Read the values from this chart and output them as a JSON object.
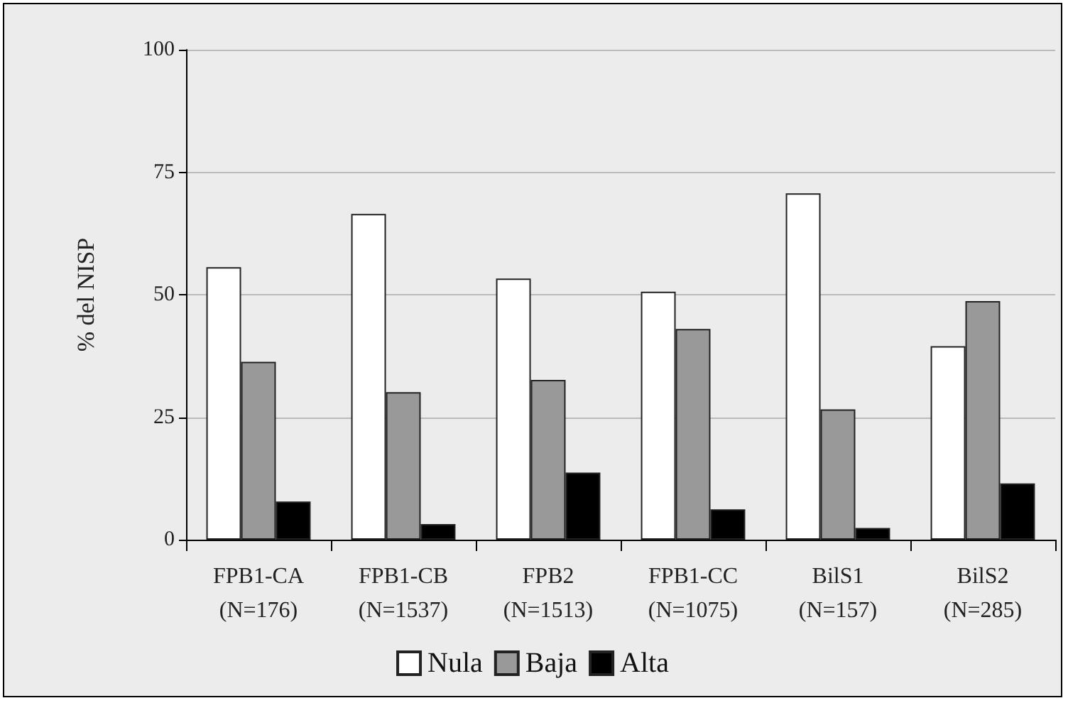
{
  "chart_data": {
    "type": "bar",
    "ylabel": "% del NISP",
    "categories": [
      "FPB1-CA\n(N=176)",
      "FPB1-CB\n(N=1537)",
      "FPB2\n(N=1513)",
      "FPB1-CC\n(N=1075)",
      "BilS1\n(N=157)",
      "BilS2\n(N=285)"
    ],
    "series": [
      {
        "name": "Nula",
        "color": "#ffffff",
        "values": [
          55.6,
          66.5,
          53.3,
          50.6,
          70.7,
          39.5
        ]
      },
      {
        "name": "Baja",
        "color": "#999999",
        "values": [
          36.3,
          30.1,
          32.6,
          43.0,
          26.6,
          48.7
        ]
      },
      {
        "name": "Alta",
        "color": "#000000",
        "values": [
          7.8,
          3.2,
          13.7,
          6.2,
          2.4,
          11.5
        ]
      }
    ],
    "ylim": [
      0,
      100
    ],
    "yticks": [
      0,
      25,
      50,
      75,
      100
    ],
    "grid": "y",
    "legend": "bottom"
  }
}
